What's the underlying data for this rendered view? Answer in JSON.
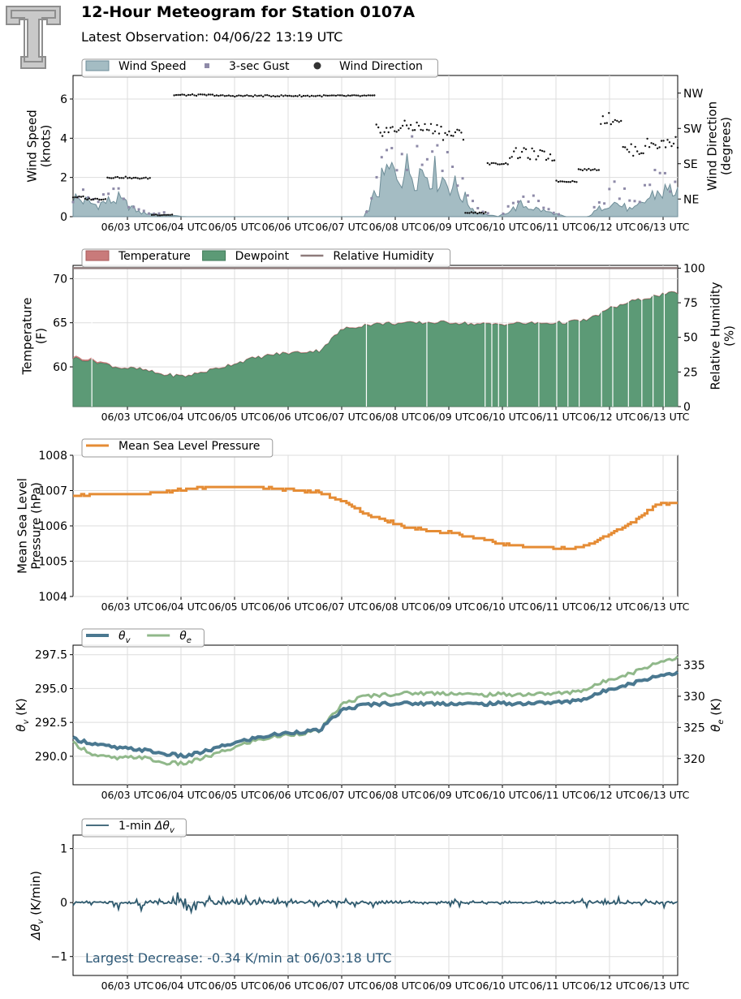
{
  "header": {
    "title": "12-Hour Meteogram for Station 0107A",
    "subtitle": "Latest Observation: 04/06/22 13:19 UTC",
    "logo_icon": "double-t-logo-icon"
  },
  "colors": {
    "wind_speed": "#a4bcc3",
    "wind_speed_edge": "#6e8d98",
    "gust": "#8e8aa8",
    "wind_dir": "#111111",
    "temperature": "#c97a7a",
    "dewpoint": "#5c9a76",
    "rh": "#8e7a7a",
    "pressure": "#e58c35",
    "theta_v": "#4a7890",
    "theta_e": "#90b88a",
    "dtheta": "#2f5a6e",
    "annotation": "#2f5a78",
    "grid": "#dddddd"
  },
  "x_ticks": [
    "06/03 UTC",
    "06/04 UTC",
    "06/05 UTC",
    "06/06 UTC",
    "06/07 UTC",
    "06/08 UTC",
    "06/09 UTC",
    "06/10 UTC",
    "06/11 UTC",
    "06/12 UTC",
    "06/13 UTC"
  ],
  "chart_data": [
    {
      "id": "wind",
      "type": "area",
      "ylabel": "Wind Speed\n(knots)",
      "ylim": [
        0,
        7.2
      ],
      "yticks": [
        0,
        2,
        4,
        6
      ],
      "y2label": "Wind Direction\n(degrees)",
      "y2ticks": [
        "NE",
        "SE",
        "SW",
        "NW"
      ],
      "y2values": [
        45,
        135,
        225,
        315
      ],
      "y2lim": [
        0,
        360
      ],
      "legend": [
        "Wind Speed",
        "3-sec Gust",
        "Wind Direction"
      ],
      "x_hours": [
        0,
        0.5,
        1,
        1.5,
        2,
        2.5,
        3,
        3.5,
        4,
        4.5,
        5,
        5.5,
        6,
        6.5,
        7,
        7.5,
        8,
        8.5,
        9,
        9.5,
        10,
        10.5,
        11,
        11.5,
        12,
        12.5,
        13,
        13.5
      ],
      "series": [
        {
          "name": "Wind Speed",
          "values": [
            1.0,
            0.6,
            0.9,
            0.2,
            0.1,
            0,
            0,
            0,
            0,
            0,
            0,
            0,
            0,
            0,
            2.2,
            2.4,
            2.3,
            1.6,
            0.2,
            0,
            0.6,
            0.3,
            0,
            0,
            0.8,
            0.3,
            1.2,
            1.4
          ]
        },
        {
          "name": "3-sec Gust",
          "values": [
            1.2,
            0.8,
            1.1,
            0.3,
            0.2,
            0,
            0,
            0,
            0,
            0,
            0,
            0,
            0,
            0,
            3.2,
            3.6,
            3.5,
            2.4,
            0.4,
            0,
            1.0,
            0.6,
            0,
            0,
            1.4,
            0.8,
            1.8,
            2.0
          ]
        },
        {
          "name": "Wind Direction",
          "values": [
            50,
            45,
            100,
            98,
            5,
            310,
            310,
            308,
            308,
            308,
            308,
            308,
            308,
            308,
            220,
            230,
            225,
            210,
            10,
            135,
            160,
            155,
            90,
            120,
            250,
            170,
            185,
            190
          ]
        }
      ],
      "grid": true
    },
    {
      "id": "temp",
      "type": "area",
      "ylabel": "Temperature\n(F)",
      "ylim": [
        55.5,
        71.5
      ],
      "yticks": [
        60,
        65,
        70
      ],
      "y2label": "Relative Humidity\n(%)",
      "y2lim": [
        0,
        102
      ],
      "y2ticks": [
        0,
        25,
        50,
        75,
        100
      ],
      "legend": [
        "Temperature",
        "Dewpoint",
        "Relative Humidity"
      ],
      "x_hours": [
        0,
        0.5,
        1,
        1.5,
        2,
        2.5,
        3,
        3.5,
        4,
        4.5,
        5,
        5.5,
        6,
        6.5,
        7,
        7.5,
        8,
        8.5,
        9,
        9.5,
        10,
        10.5,
        11,
        11.5,
        12,
        12.5,
        13,
        13.5
      ],
      "series": [
        {
          "name": "Temperature",
          "values": [
            61.2,
            60.8,
            60.0,
            59.8,
            59.2,
            59.0,
            59.6,
            60.3,
            61.0,
            61.5,
            61.7,
            61.9,
            64.3,
            64.8,
            65.0,
            65.0,
            65.1,
            65.1,
            64.9,
            64.9,
            65.0,
            65.0,
            65.1,
            65.4,
            66.7,
            67.5,
            68.1,
            68.5
          ]
        },
        {
          "name": "Dewpoint",
          "values": [
            61.0,
            60.6,
            59.9,
            59.7,
            59.1,
            58.9,
            59.5,
            60.2,
            60.9,
            61.4,
            61.6,
            61.8,
            64.2,
            64.7,
            64.9,
            64.9,
            65.0,
            65.0,
            64.8,
            64.8,
            64.9,
            64.9,
            65.0,
            65.3,
            66.6,
            67.4,
            68.0,
            68.4
          ]
        },
        {
          "name": "Relative Humidity",
          "values": [
            100,
            100,
            100,
            100,
            100,
            100,
            100,
            100,
            100,
            100,
            100,
            100,
            100,
            100,
            100,
            100,
            100,
            100,
            100,
            100,
            100,
            100,
            100,
            100,
            100,
            100,
            100,
            100
          ]
        }
      ],
      "grid": true
    },
    {
      "id": "pressure",
      "type": "line",
      "ylabel": "Mean Sea Level\nPressure (hPa)",
      "ylim": [
        1004,
        1008
      ],
      "yticks": [
        1004,
        1005,
        1006,
        1007,
        1008
      ],
      "legend": [
        "Mean Sea Level Pressure"
      ],
      "x_hours": [
        0,
        0.5,
        1,
        1.5,
        2,
        2.5,
        3,
        3.5,
        4,
        4.5,
        5,
        5.5,
        6,
        6.5,
        7,
        7.5,
        8,
        8.5,
        9,
        9.5,
        10,
        10.5,
        11,
        11.5,
        12,
        12.5,
        13,
        13.5
      ],
      "series": [
        {
          "name": "Mean Sea Level Pressure",
          "values": [
            1006.85,
            1006.88,
            1006.9,
            1006.9,
            1006.95,
            1007.05,
            1007.1,
            1007.1,
            1007.1,
            1007.05,
            1007.0,
            1006.95,
            1006.7,
            1006.35,
            1006.15,
            1005.95,
            1005.85,
            1005.8,
            1005.65,
            1005.5,
            1005.42,
            1005.4,
            1005.35,
            1005.45,
            1005.8,
            1006.1,
            1006.6,
            1006.65
          ]
        }
      ],
      "grid": true
    },
    {
      "id": "theta",
      "type": "line",
      "ylabel": "θv (K)",
      "ylim": [
        287.9,
        298.2
      ],
      "yticks": [
        290.0,
        292.5,
        295.0,
        297.5
      ],
      "ytick_labels": [
        "290.0",
        "292.5",
        "295.0",
        "297.5"
      ],
      "y2label": "θe (K)",
      "y2lim": [
        315.8,
        338.2
      ],
      "y2ticks": [
        320,
        325,
        330,
        335
      ],
      "legend": [
        "θv",
        "θe"
      ],
      "x_hours": [
        0,
        0.5,
        1,
        1.5,
        2,
        2.5,
        3,
        3.5,
        4,
        4.5,
        5,
        5.5,
        6,
        6.5,
        7,
        7.5,
        8,
        8.5,
        9,
        9.5,
        10,
        10.5,
        11,
        11.5,
        12,
        12.5,
        13,
        13.5
      ],
      "series": [
        {
          "name": "θv",
          "axis": "left",
          "values": [
            291.3,
            290.9,
            290.6,
            290.5,
            290.2,
            290.0,
            290.4,
            290.9,
            291.3,
            291.6,
            291.8,
            291.9,
            293.4,
            293.8,
            293.9,
            293.9,
            293.9,
            293.9,
            293.85,
            293.9,
            293.9,
            293.95,
            294.0,
            294.3,
            295.0,
            295.4,
            295.9,
            296.2
          ]
        },
        {
          "name": "θe",
          "axis": "right",
          "values": [
            322.5,
            320.5,
            320.0,
            320.3,
            319.3,
            319.2,
            320.3,
            321.5,
            322.8,
            323.5,
            324.0,
            324.4,
            328.7,
            330.0,
            330.3,
            330.5,
            330.5,
            330.5,
            330.2,
            330.3,
            330.3,
            330.4,
            330.5,
            331.2,
            332.8,
            333.8,
            335.3,
            336.3
          ]
        }
      ],
      "grid": true
    },
    {
      "id": "dtheta",
      "type": "line",
      "ylabel": "Δθv (K/min)",
      "ylim": [
        -1.35,
        1.25
      ],
      "yticks": [
        -1,
        0,
        1
      ],
      "legend": [
        "1-min Δθv"
      ],
      "annotation": "Largest Decrease: -0.34 K/min at 06/03:18 UTC",
      "x_hours": [
        0,
        0.5,
        1,
        1.5,
        2,
        2.5,
        3,
        3.5,
        4,
        4.5,
        5,
        5.5,
        6,
        6.5,
        7,
        7.5,
        8,
        8.5,
        9,
        9.5,
        10,
        10.5,
        11,
        11.5,
        12,
        12.5,
        13,
        13.5
      ],
      "series": [
        {
          "name": "1-min Δθv",
          "values": [
            0.05,
            -0.05,
            0.12,
            -0.2,
            0.15,
            -0.34,
            0.1,
            0.08,
            0.1,
            0.06,
            0.05,
            0.07,
            0.06,
            0.08,
            0.05,
            0.02,
            0.0,
            0.08,
            0.0,
            0.03,
            0.0,
            0.05,
            0.0,
            0.1,
            0.12,
            0.0,
            0.08,
            0.06
          ]
        }
      ],
      "grid": true
    }
  ]
}
